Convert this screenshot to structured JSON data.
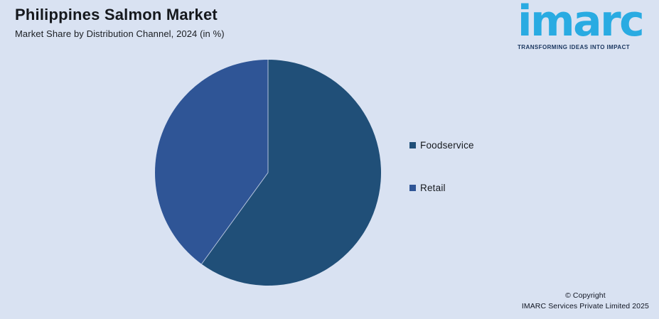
{
  "page": {
    "background_color": "#D9E2F2"
  },
  "header": {
    "title": "Philippines Salmon Market",
    "subtitle": "Market Share by Distribution Channel, 2024 (in %)"
  },
  "logo": {
    "text": "imarc",
    "tagline": "TRANSFORMING IDEAS INTO IMPACT",
    "brand_color": "#29ABE2",
    "tagline_color": "#1B3760"
  },
  "footer": {
    "line1": "© Copyright",
    "line2": "IMARC Services Private Limited 2025"
  },
  "chart_data": {
    "type": "pie",
    "title": "Philippines Salmon Market",
    "subtitle": "Market Share by Distribution Channel, 2024 (in %)",
    "unit": "%",
    "start_angle_deg": 0,
    "direction": "clockwise",
    "legend_position": "right",
    "divider_line_color": "#CBD6EA",
    "segments": [
      {
        "label": "Foodservice",
        "value": 60,
        "color": "#204F78"
      },
      {
        "label": "Retail",
        "value": 40,
        "color": "#2F5596"
      }
    ]
  }
}
